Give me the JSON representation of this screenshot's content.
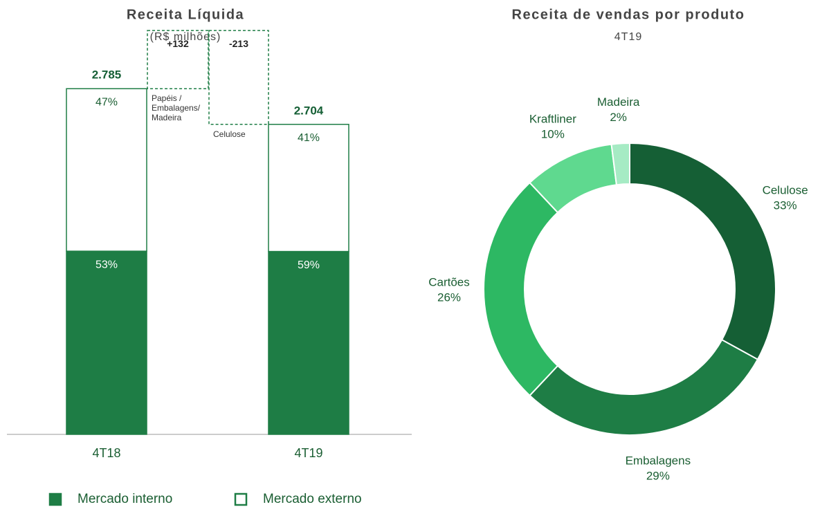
{
  "chart_data": [
    {
      "type": "waterfall",
      "title": "Receita Líquida",
      "subtitle": "(R$ milhões)",
      "categories": [
        "4T18",
        "Papéis / Embalagens/ Madeira",
        "Celulose",
        "4T19"
      ],
      "values": [
        2785,
        132,
        -213,
        2704
      ],
      "value_labels": [
        "2.785",
        "+132",
        "-213",
        "2.704"
      ],
      "ylim": [
        2000,
        2900
      ],
      "series": [
        {
          "name": "Mercado interno",
          "color": "#1e7d45",
          "values": [
            53,
            null,
            null,
            59
          ],
          "value_labels": [
            "53%",
            null,
            null,
            "59%"
          ]
        },
        {
          "name": "Mercado externo",
          "color": "#ffffff",
          "values": [
            47,
            null,
            null,
            41
          ],
          "value_labels": [
            "47%",
            null,
            null,
            "41%"
          ]
        }
      ]
    },
    {
      "type": "donut",
      "title": "Receita de vendas por produto",
      "subtitle": "4T19",
      "categories": [
        "Celulose",
        "Embalagens",
        "Cartões",
        "Kraftliner",
        "Madeira"
      ],
      "values": [
        33,
        29,
        26,
        10,
        2
      ],
      "value_labels": [
        "33%",
        "29%",
        "26%",
        "10%",
        "2%"
      ],
      "colors": [
        "#155f35",
        "#1e7d45",
        "#2db863",
        "#5fd98f",
        "#a6ebc4"
      ]
    }
  ]
}
